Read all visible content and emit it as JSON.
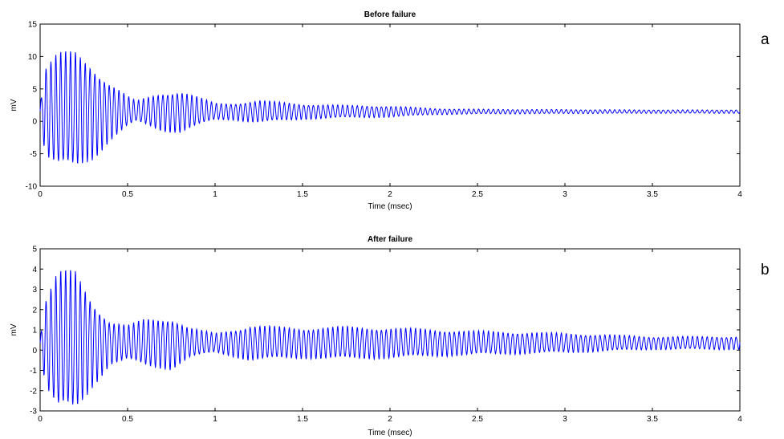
{
  "figure": {
    "panel_labels": [
      "a",
      "b"
    ]
  },
  "chart_data": [
    {
      "type": "line",
      "title": "Before failure",
      "xlabel": "Time (msec)",
      "ylabel": "mV",
      "xlim": [
        0,
        4
      ],
      "ylim": [
        -10,
        15
      ],
      "xticks": [
        0,
        0.5,
        1,
        1.5,
        2,
        2.5,
        3,
        3.5,
        4
      ],
      "xtick_labels": [
        "0",
        "0.5",
        "1",
        "1.5",
        "2",
        "2.5",
        "3",
        "3.5",
        "4"
      ],
      "yticks": [
        -10,
        -5,
        0,
        5,
        10,
        15
      ],
      "ytick_labels": [
        "-10",
        "-5",
        "0",
        "5",
        "10",
        "15"
      ],
      "grid": false,
      "line_color": "#0000ff",
      "series": [
        {
          "baseline_mV": 1.5,
          "oscillation_freq_kHz": 36,
          "envelope": {
            "t": [
              0,
              0.03,
              0.1,
              0.2,
              0.3,
              0.4,
              0.5,
              0.55,
              0.7,
              0.8,
              0.9,
              1.0,
              1.1,
              1.25,
              1.5,
              1.75,
              2.0,
              2.25,
              2.5,
              3.0,
              3.5,
              4.0
            ],
            "amplitude_mV": [
              1.0,
              6.5,
              8.3,
              8.5,
              6.8,
              4.2,
              2.2,
              1.5,
              2.8,
              3.0,
              2.1,
              1.2,
              1.2,
              1.6,
              1.1,
              0.9,
              0.8,
              0.45,
              0.35,
              0.3,
              0.25,
              0.25
            ]
          }
        }
      ]
    },
    {
      "type": "line",
      "title": "After failure",
      "xlabel": "Time (msec)",
      "ylabel": "mV",
      "xlim": [
        0,
        4
      ],
      "ylim": [
        -3,
        5
      ],
      "xticks": [
        0,
        0.5,
        1,
        1.5,
        2,
        2.5,
        3,
        3.5,
        4
      ],
      "xtick_labels": [
        "0",
        "0.5",
        "1",
        "1.5",
        "2",
        "2.5",
        "3",
        "3.5",
        "4"
      ],
      "yticks": [
        -3,
        -2,
        -1,
        0,
        1,
        2,
        3,
        4,
        5
      ],
      "ytick_labels": [
        "-3",
        "-2",
        "-1",
        "0",
        "1",
        "2",
        "3",
        "4",
        "5"
      ],
      "grid": false,
      "line_color": "#0000ff",
      "series": [
        {
          "baseline_mV": 0.35,
          "oscillation_freq_kHz": 36,
          "envelope": {
            "t": [
              0,
              0.03,
              0.1,
              0.2,
              0.3,
              0.4,
              0.5,
              0.6,
              0.75,
              0.85,
              1.0,
              1.2,
              1.5,
              1.75,
              2.0,
              2.5,
              3.0,
              3.5,
              4.0
            ],
            "amplitude_mV": [
              0.2,
              2.0,
              3.2,
              3.3,
              2.0,
              1.0,
              0.8,
              1.1,
              1.2,
              0.7,
              0.45,
              0.8,
              0.7,
              0.75,
              0.7,
              0.55,
              0.45,
              0.3,
              0.3
            ]
          }
        }
      ]
    }
  ]
}
